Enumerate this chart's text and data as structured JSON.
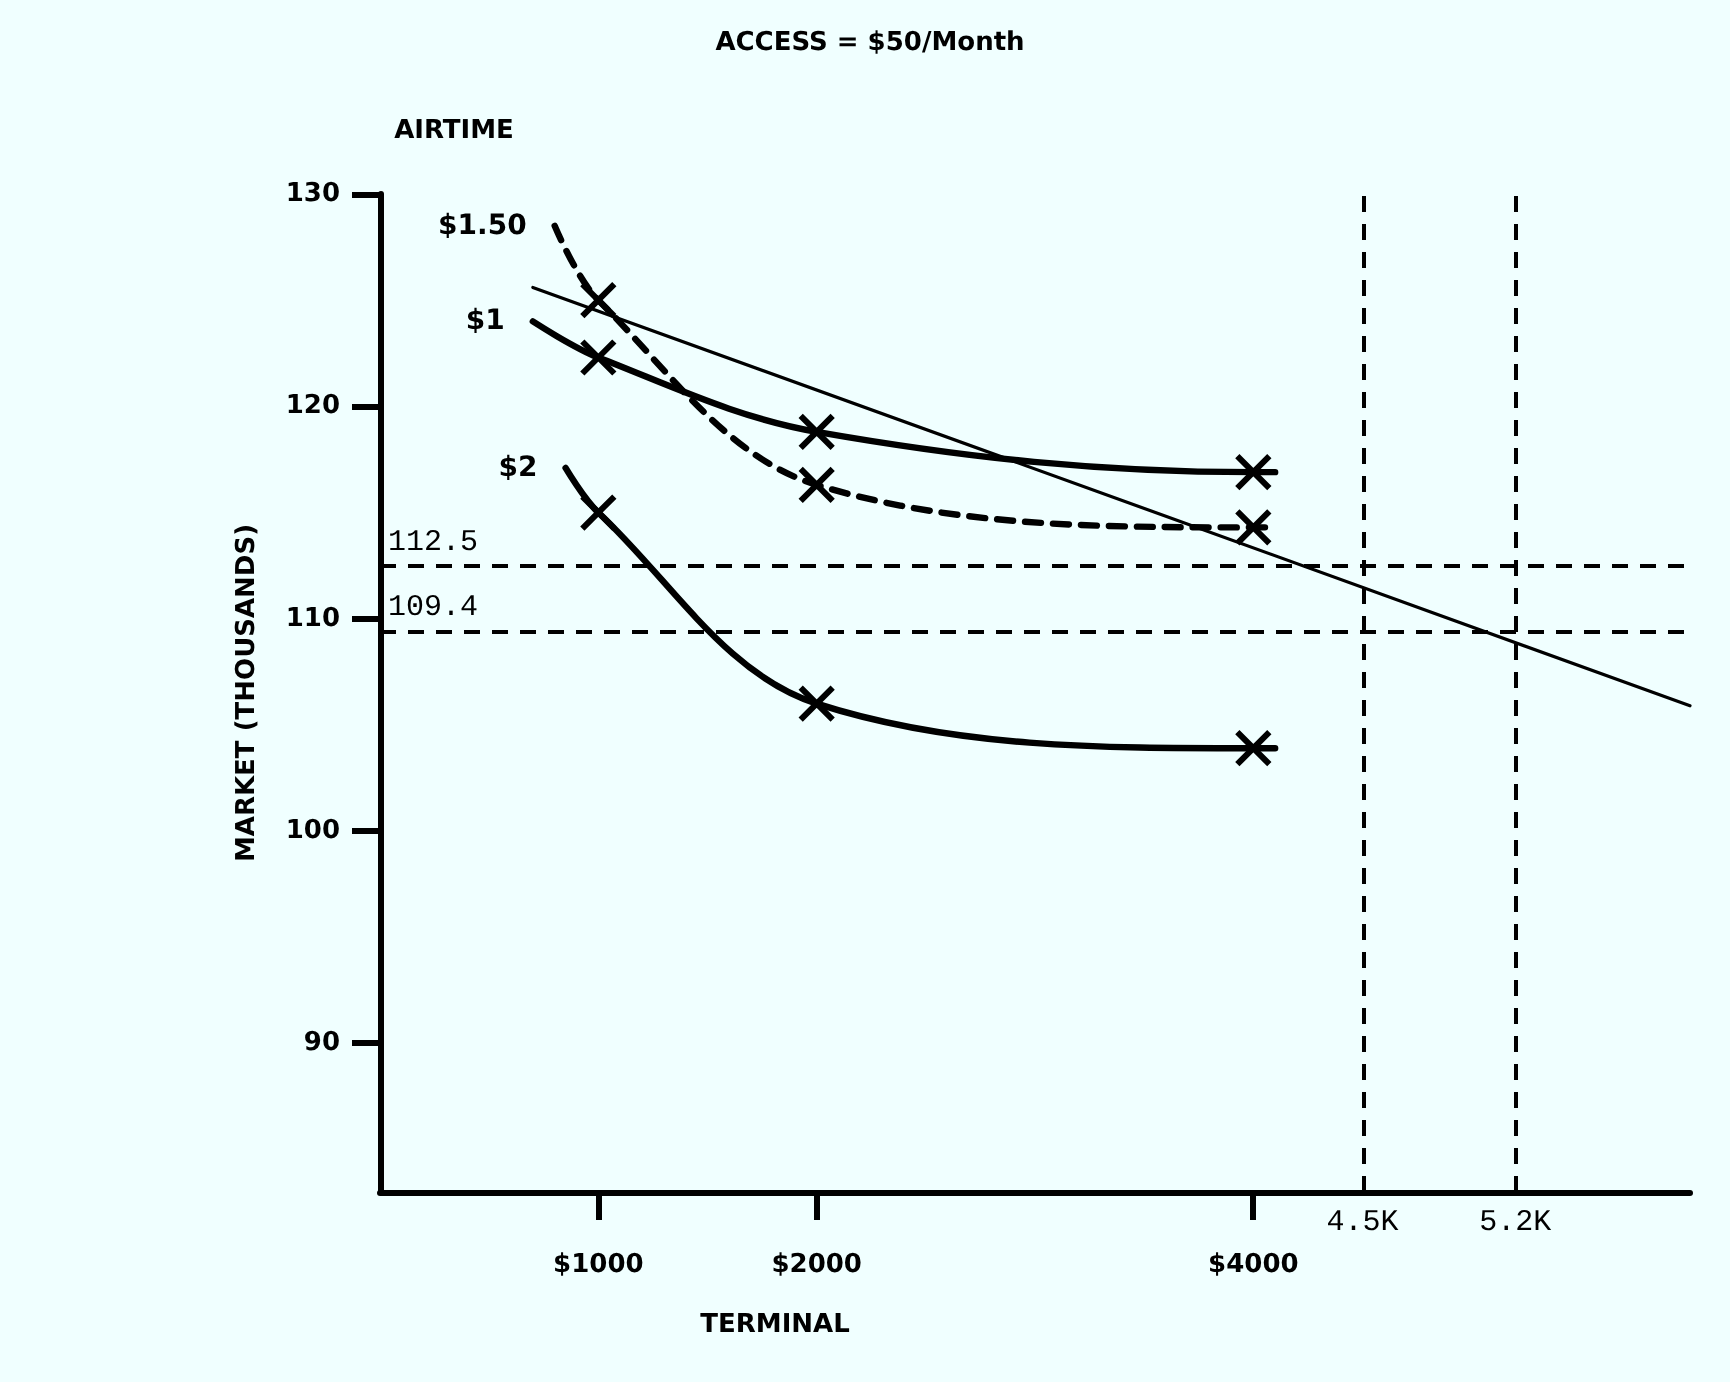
{
  "chart_data": {
    "type": "line",
    "title": "ACCESS = $50/Month",
    "legend_title": "AIRTIME",
    "xlabel": "TERMINAL",
    "ylabel": "MARKET (THOUSANDS)",
    "series": [
      {
        "name": "$1.50",
        "color": "#000000",
        "line_style": "dashed",
        "x": [
          800,
          1000,
          2000,
          4000,
          4100
        ],
        "values": [
          128.5,
          125.0,
          116.3,
          114.3,
          114.3
        ]
      },
      {
        "name": "$1",
        "color": "#000000",
        "x": [
          700,
          1000,
          2000,
          4000,
          4100
        ],
        "values": [
          124.0,
          122.3,
          118.8,
          116.9,
          116.9
        ]
      },
      {
        "name": "$2",
        "color": "#000000",
        "x": [
          850,
          1000,
          2000,
          4000,
          4100
        ],
        "values": [
          117.1,
          115.0,
          106.0,
          103.9,
          103.9
        ]
      },
      {
        "color": "#000000",
        "marker": "none",
        "x": [
          700,
          6000
        ],
        "values": [
          125.6,
          105.9
        ]
      }
    ],
    "marker": "cross",
    "line_style": "solid",
    "legend": false,
    "grid": false,
    "xlim": [
      0,
      6000
    ],
    "xticks": [
      {
        "value": 1000,
        "label": "$1000"
      },
      {
        "value": 2000,
        "label": "$2000"
      },
      {
        "value": 4000,
        "label": "$4000"
      }
    ],
    "ylim": [
      83,
      130
    ],
    "yticks": [
      90,
      100,
      110,
      120,
      130
    ],
    "ref_lines": [
      {
        "axis": "y",
        "value": 112.5,
        "label": "112.5",
        "line_style": "dashed"
      },
      {
        "axis": "y",
        "value": 109.4,
        "label": "109.4",
        "line_style": "dashed"
      },
      {
        "axis": "x",
        "value": 4500,
        "label": "4.5K",
        "line_style": "dashed"
      },
      {
        "axis": "x",
        "value": 5200,
        "label": "5.2K",
        "line_style": "dashed"
      }
    ]
  }
}
